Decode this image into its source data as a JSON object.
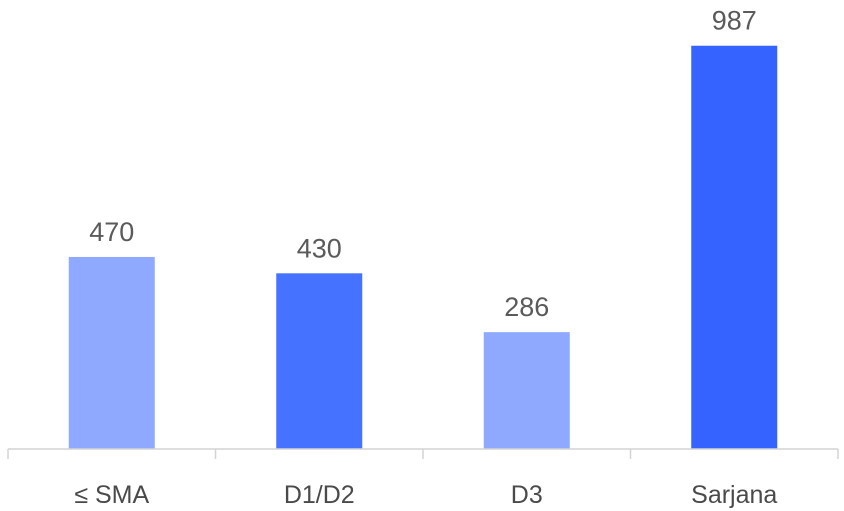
{
  "chart_data": {
    "type": "bar",
    "title": "",
    "xlabel": "",
    "ylabel": "",
    "categories": [
      "≤ SMA",
      "D1/D2",
      "D3",
      "Sarjana"
    ],
    "values": [
      470,
      430,
      286,
      987
    ],
    "data_labels": [
      "470",
      "430",
      "286",
      "987"
    ],
    "ylim": [
      0,
      1050
    ],
    "grid": false,
    "legend": "none",
    "bar_colors": [
      "#8ea9ff",
      "#4572ff",
      "#8ea9ff",
      "#3563ff"
    ]
  }
}
